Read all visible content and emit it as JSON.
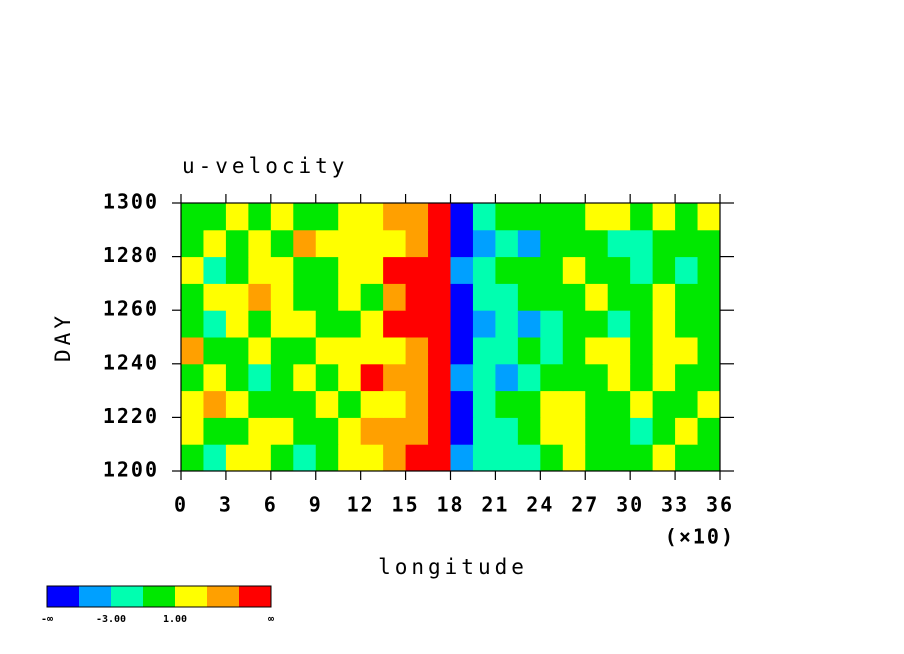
{
  "chart_data": {
    "type": "heatmap",
    "title": "u-velocity",
    "xlabel": "longitude",
    "ylabel": "DAY",
    "x_multiplier": "(×10)",
    "xbins": [
      0,
      1.5,
      3,
      4.5,
      6,
      7.5,
      9,
      10.5,
      12,
      13.5,
      15,
      16.5,
      18,
      19.5,
      21,
      22.5,
      24,
      25.5,
      27,
      28.5,
      30,
      31.5,
      33,
      34.5,
      36
    ],
    "ybins": [
      1200,
      1210,
      1220,
      1230,
      1240,
      1250,
      1260,
      1270,
      1280,
      1290,
      1300
    ],
    "z": [
      [
        0.5,
        -1.5,
        2,
        1.5,
        0,
        -2,
        0.5,
        1,
        2,
        3.5,
        5.5,
        6,
        -4,
        -2.5,
        -1.5,
        -2,
        0.5,
        1.5,
        0,
        -1,
        0.5,
        1,
        -0.5,
        0
      ],
      [
        2,
        0.5,
        -0.5,
        2.5,
        1,
        -1,
        0,
        1.5,
        3,
        4,
        3.5,
        6,
        -5.5,
        -3,
        -2,
        -1,
        1.5,
        2,
        0.5,
        -0.5,
        -1.5,
        0,
        1,
        0.5
      ],
      [
        1,
        3.5,
        2,
        0.5,
        -1,
        0.5,
        1.5,
        -0.5,
        1,
        2,
        3,
        5.5,
        -6,
        -2.5,
        -1,
        0.5,
        2,
        1,
        -0.5,
        0.5,
        1,
        -1,
        0,
        1.5
      ],
      [
        -1,
        1,
        0,
        -1.5,
        0.5,
        2,
        -0.5,
        1,
        5.5,
        3,
        4.5,
        6.5,
        -5,
        -2,
        -3.5,
        -1.5,
        0,
        -1,
        0.5,
        1.5,
        0,
        1,
        -0.5,
        0
      ],
      [
        3,
        0.5,
        -1,
        1.5,
        -0.5,
        0,
        1,
        2.5,
        1.5,
        2.5,
        3.5,
        6,
        -5.5,
        -3,
        -1.5,
        -0.5,
        -2,
        -1,
        2,
        1.5,
        0.5,
        2,
        1.5,
        -0.5
      ],
      [
        0.5,
        -1.5,
        1,
        0,
        2,
        1.5,
        -1,
        0.5,
        2,
        5.5,
        6,
        6,
        -6,
        -3.5,
        -2.5,
        -4,
        -2,
        -1,
        0,
        -1.5,
        -0.5,
        1,
        0,
        -1
      ],
      [
        -0.5,
        1,
        2.5,
        3.5,
        1,
        -1,
        0.5,
        1.5,
        0.5,
        3,
        6,
        6.5,
        -6.5,
        -3,
        -1.5,
        -1,
        0.5,
        -0.5,
        1,
        -0.5,
        0.5,
        1.5,
        -1,
        0
      ],
      [
        1,
        -2,
        0,
        1,
        2,
        0.5,
        -1,
        1,
        2.5,
        5.5,
        6,
        6,
        -5,
        -2,
        -1,
        0.5,
        -1,
        1.5,
        -0.5,
        0,
        -1.5,
        0,
        -2,
        -1
      ],
      [
        0.5,
        1.5,
        -0.5,
        2,
        0,
        3,
        1.5,
        2,
        1,
        2,
        3,
        5.5,
        -6,
        -4,
        -2,
        -4.5,
        -1,
        0,
        -1,
        -1.5,
        -2,
        -0.5,
        0.5,
        -1
      ],
      [
        -1,
        0,
        1,
        -0.5,
        1.5,
        -1,
        0.5,
        1,
        2,
        3.5,
        4,
        6,
        -6,
        -2.5,
        -1,
        -0.5,
        0.5,
        -0.5,
        1,
        2,
        0,
        1,
        0.5,
        1.5
      ]
    ],
    "xlim": [
      0,
      36
    ],
    "xticks": [
      0,
      3,
      6,
      9,
      12,
      15,
      18,
      21,
      24,
      27,
      30,
      33,
      36
    ],
    "ylim": [
      1200,
      1300
    ],
    "yticks": [
      1200,
      1220,
      1240,
      1260,
      1280,
      1300
    ],
    "colorbar": {
      "colors": [
        "#0000ff",
        "#00a0ff",
        "#00ffb0",
        "#00e800",
        "#ffff00",
        "#ffa000",
        "#ff0000"
      ],
      "boundaries": [
        null,
        -5,
        -3,
        -1,
        1,
        3,
        5,
        null
      ],
      "boundary_labels": [
        "-∞",
        null,
        "-3.00",
        null,
        "1.00",
        null,
        null,
        "∞"
      ]
    }
  }
}
